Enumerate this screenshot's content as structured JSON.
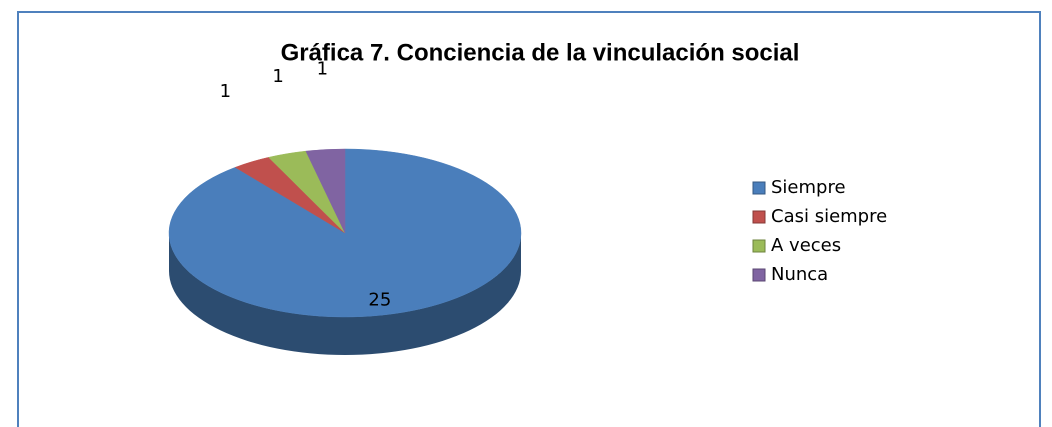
{
  "chart_data": {
    "type": "pie",
    "title": "Gráfica 7. Conciencia de la vinculación social",
    "categories": [
      "Siempre",
      "Casi siempre",
      "A veces",
      "Nunca"
    ],
    "values": [
      25,
      1,
      1,
      1
    ],
    "colors": [
      "#4a7ebb",
      "#c0504d",
      "#9bbb59",
      "#8064a2"
    ],
    "legend": "right"
  }
}
